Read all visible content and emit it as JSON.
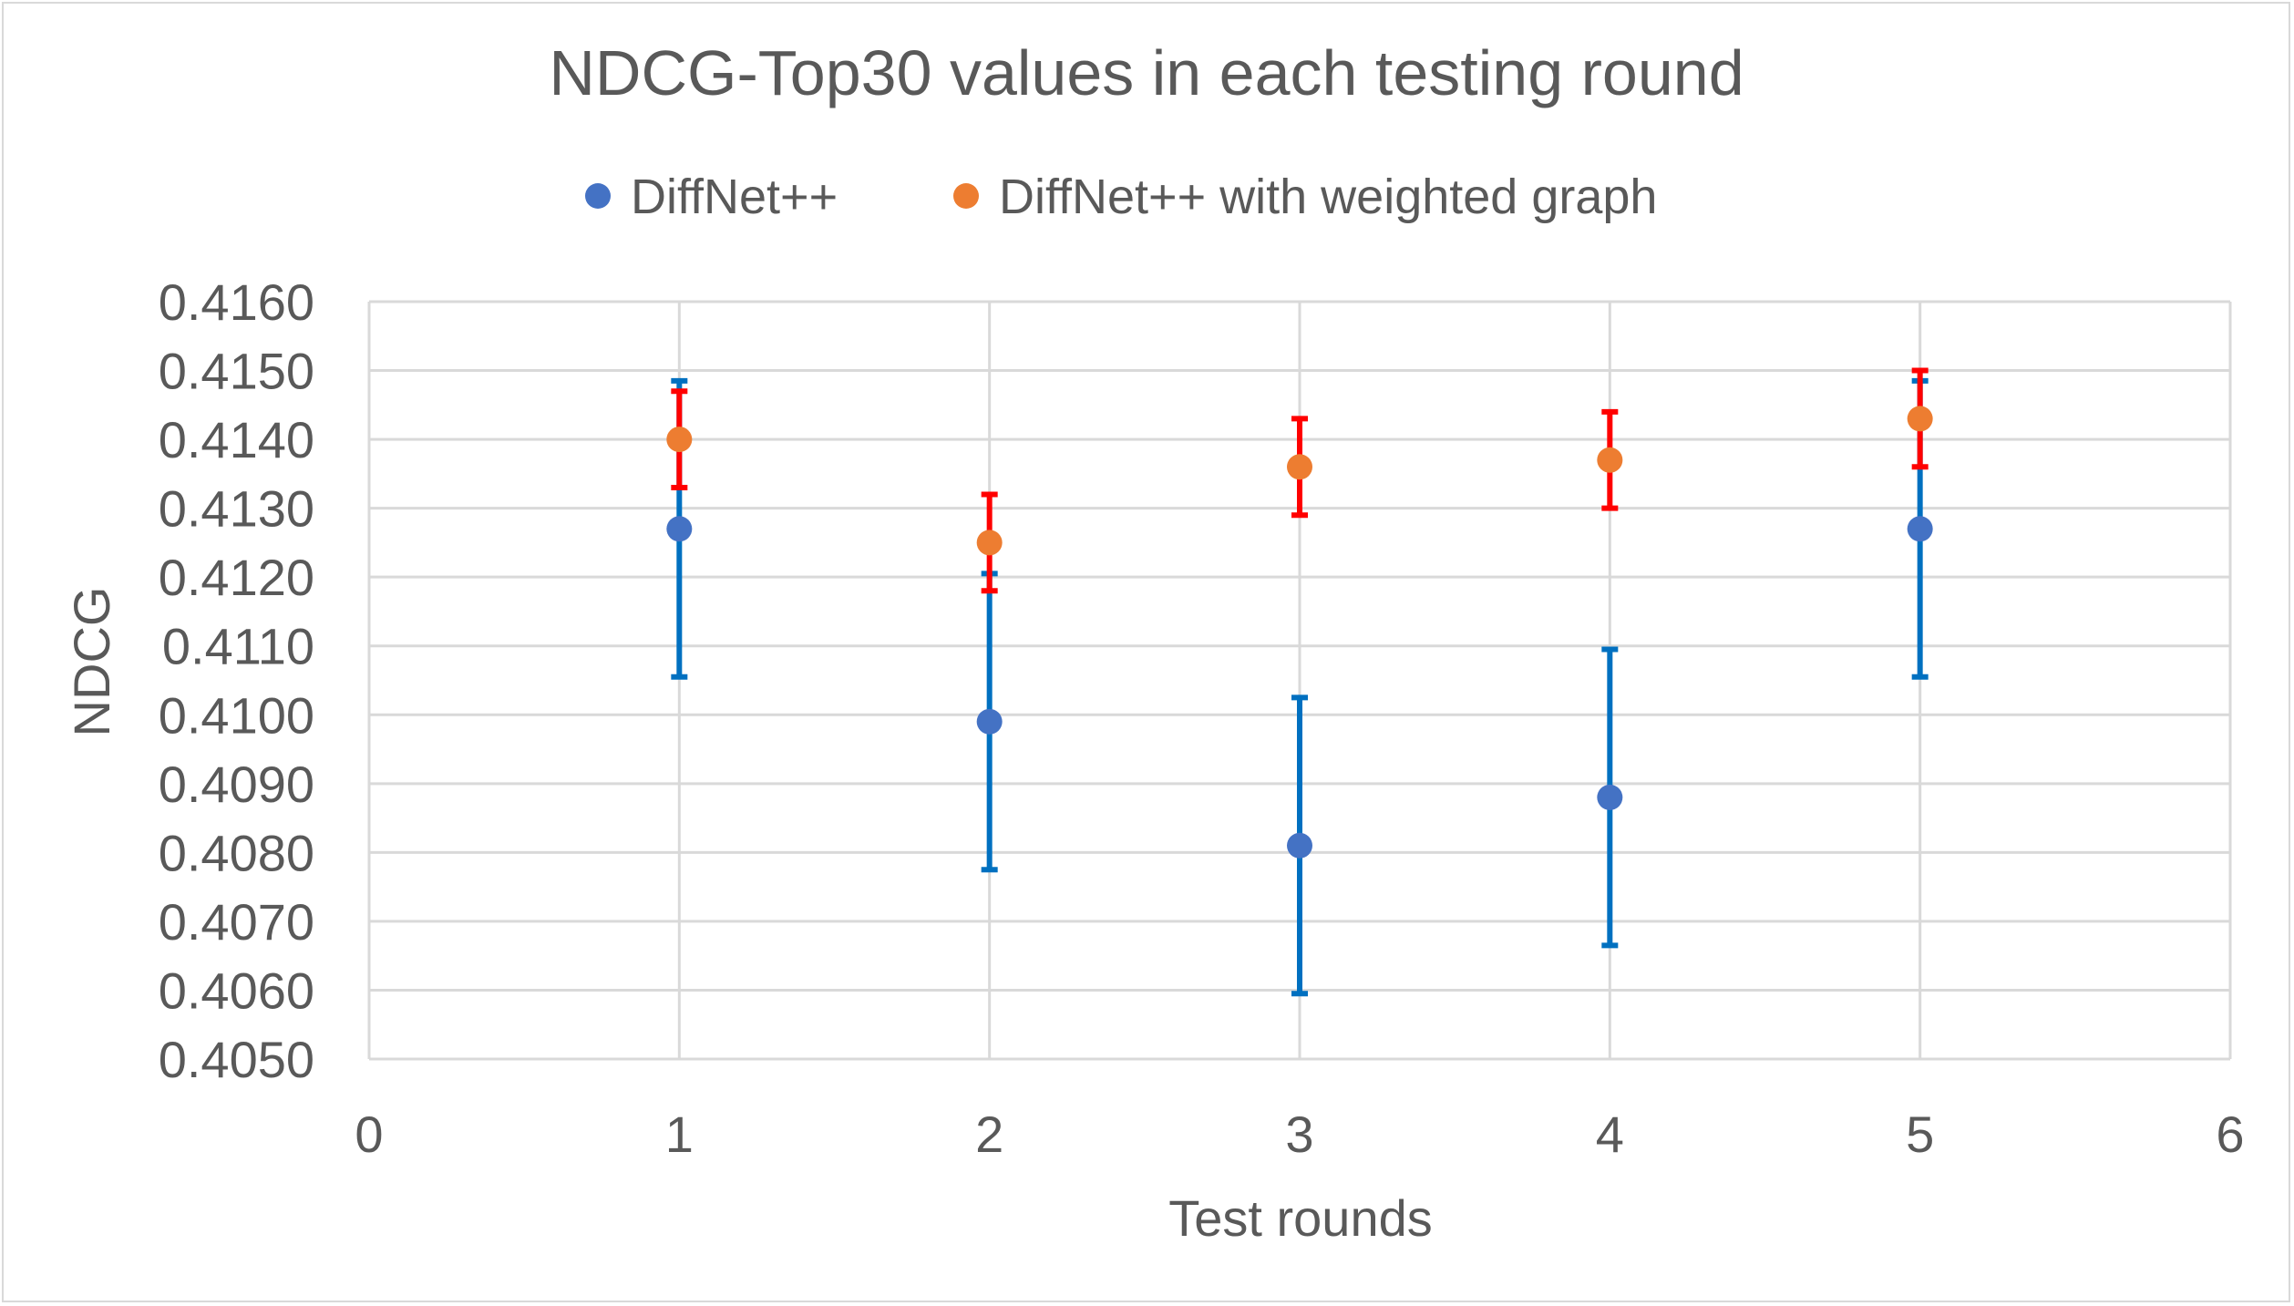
{
  "chart_data": {
    "type": "scatter",
    "title": "NDCG-Top30 values in each testing round",
    "xlabel": "Test rounds",
    "ylabel": "NDCG",
    "xlim": [
      0,
      6
    ],
    "ylim": [
      0.405,
      0.416
    ],
    "x_ticks": [
      "0",
      "1",
      "2",
      "3",
      "4",
      "5",
      "6"
    ],
    "y_ticks": [
      "0.4050",
      "0.4060",
      "0.4070",
      "0.4080",
      "0.4090",
      "0.4100",
      "0.4110",
      "0.4120",
      "0.4130",
      "0.4140",
      "0.4150",
      "0.4160"
    ],
    "grid": true,
    "legend_position": "top",
    "series": [
      {
        "name": "DiffNet++",
        "color": "#4472c4",
        "error_color": "#0070c0",
        "x": [
          1,
          2,
          3,
          4,
          5
        ],
        "y": [
          0.4127,
          0.4099,
          0.4081,
          0.4088,
          0.4127
        ],
        "error_low": [
          0.41055,
          0.40775,
          0.40595,
          0.40665,
          0.41055
        ],
        "error_high": [
          0.41485,
          0.41205,
          0.41025,
          0.41095,
          0.41485
        ]
      },
      {
        "name": "DiffNet++ with weighted graph",
        "color": "#ed7d31",
        "error_color": "#ff0000",
        "x": [
          1,
          2,
          3,
          4,
          5
        ],
        "y": [
          0.414,
          0.4125,
          0.4136,
          0.4137,
          0.4143
        ],
        "error_low": [
          0.4133,
          0.4118,
          0.4129,
          0.413,
          0.4136
        ],
        "error_high": [
          0.4147,
          0.4132,
          0.4143,
          0.4144,
          0.415
        ]
      }
    ]
  }
}
